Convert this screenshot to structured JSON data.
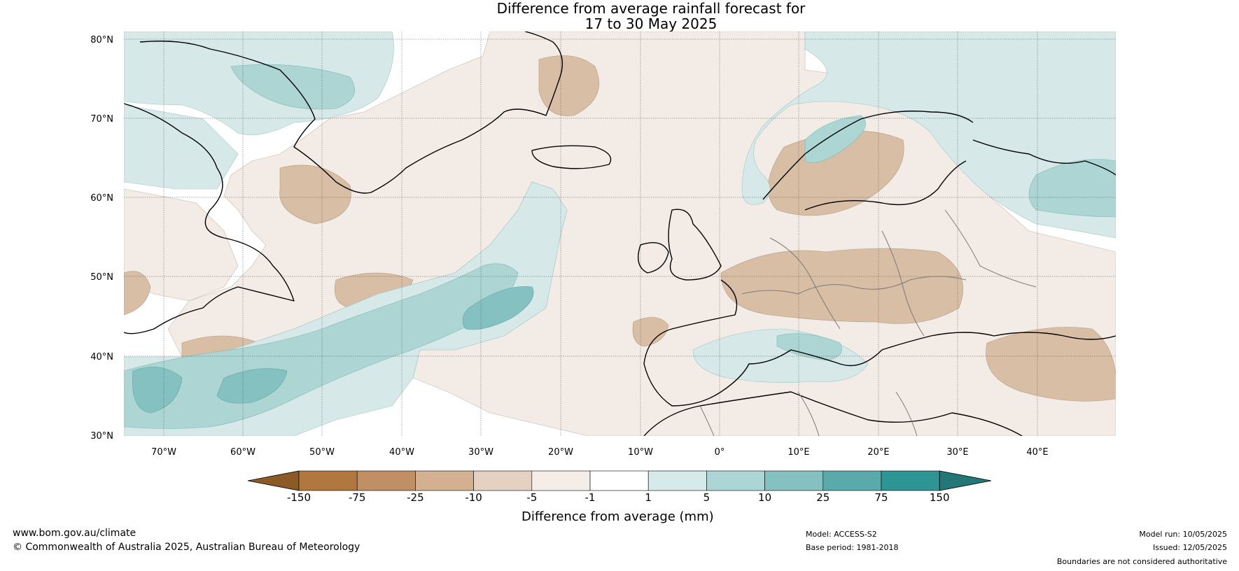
{
  "title": {
    "line1": "Difference from average rainfall forecast for",
    "line2": "17 to 30 May 2025"
  },
  "map": {
    "lat_labels": [
      "80°N",
      "70°N",
      "60°N",
      "50°N",
      "40°N",
      "30°N"
    ],
    "lon_labels": [
      "70°W",
      "60°W",
      "50°W",
      "40°W",
      "30°W",
      "20°W",
      "10°W",
      "0°",
      "10°E",
      "20°E",
      "30°E",
      "40°E"
    ],
    "colors": {
      "dry_strong": "#d7bea5",
      "dry_light": "#f3ece6",
      "wet_light": "#d6e9e8",
      "wet_mid": "#acd5d4",
      "wet_strong": "#84c1c0",
      "coast": "#000000",
      "border": "#7a7a7a"
    }
  },
  "colorbar": {
    "ticks": [
      "-150",
      "-75",
      "-25",
      "-10",
      "-5",
      "-1",
      "1",
      "5",
      "10",
      "25",
      "75",
      "150"
    ],
    "colors": [
      "#8c5a25",
      "#b0783f",
      "#c09064",
      "#d2b090",
      "#e5d1c1",
      "#f4ede8",
      "#ffffff",
      "#d6eaea",
      "#acd6d6",
      "#84c1c0",
      "#5aaaab",
      "#2f9494",
      "#237777"
    ],
    "title": "Difference from average (mm)"
  },
  "footer": {
    "website": "www.bom.gov.au/climate",
    "copyright": "© Commonwealth of Australia 2025, Australian Bureau of Meteorology",
    "model": "Model: ACCESS-S2",
    "base_period": "Base period: 1981-2018",
    "model_run": "Model run: 10/05/2025",
    "issued": "Issued: 12/05/2025",
    "disclaimer": "Boundaries are not considered authoritative"
  }
}
